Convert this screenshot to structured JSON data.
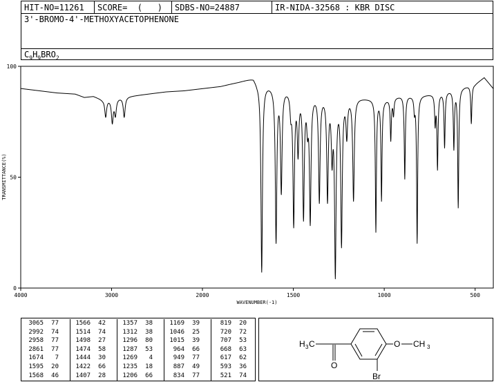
{
  "header": {
    "hit_no": "HIT-NO=11261",
    "score": "SCORE=  (   )",
    "sdbs_no": "SDBS-NO=24887",
    "method": "IR-NIDA-32568 : KBR DISC"
  },
  "compound": {
    "name": "3'-BROMO-4'-METHOXYACETOPHENONE",
    "formula_parts": [
      {
        "t": "C",
        "sub": false
      },
      {
        "t": "9",
        "sub": true
      },
      {
        "t": "H",
        "sub": false
      },
      {
        "t": "9",
        "sub": true
      },
      {
        "t": "BRO",
        "sub": false
      },
      {
        "t": "2",
        "sub": true
      }
    ]
  },
  "structure_labels": {
    "h3c_h": "H",
    "h3c_3": "3",
    "h3c_c": "C",
    "o_carbonyl": "O",
    "o_ether": "O",
    "ch3": "CH",
    "ch3_sub": "3",
    "br": "Br"
  },
  "chart_data": {
    "type": "line",
    "xlabel": "WAVENUMBER(-1)",
    "ylabel": "TRANSMITTANCE(%)",
    "xlim": [
      4000,
      400
    ],
    "ylim": [
      0,
      100
    ],
    "xticks": [
      4000,
      3000,
      2000,
      1500,
      1000,
      500
    ],
    "yticks": [
      0,
      50,
      100
    ],
    "x_scale": "two-segment linear (4000-2000 compressed, 2000-400 expanded)",
    "baseline": [
      [
        4000,
        90
      ],
      [
        3800,
        89
      ],
      [
        3600,
        88
      ],
      [
        3400,
        87.5
      ],
      [
        3300,
        86
      ],
      [
        3200,
        86.5
      ],
      [
        3100,
        85
      ],
      [
        2700,
        87
      ],
      [
        2400,
        88.5
      ],
      [
        2200,
        89
      ],
      [
        2000,
        90
      ],
      [
        1900,
        91
      ],
      [
        1800,
        93
      ],
      [
        1720,
        95
      ],
      [
        1700,
        93
      ],
      [
        1420,
        88
      ],
      [
        1000,
        85
      ],
      [
        900,
        87
      ],
      [
        800,
        87
      ],
      [
        700,
        88
      ],
      [
        600,
        90
      ],
      [
        500,
        92
      ],
      [
        450,
        95
      ],
      [
        400,
        90
      ]
    ],
    "peaks": [
      [
        3065,
        77
      ],
      [
        2992,
        74
      ],
      [
        2958,
        77
      ],
      [
        2861,
        77
      ],
      [
        1674,
        7
      ],
      [
        1595,
        20
      ],
      [
        1568,
        46
      ],
      [
        1566,
        42
      ],
      [
        1514,
        74
      ],
      [
        1498,
        27
      ],
      [
        1474,
        58
      ],
      [
        1444,
        30
      ],
      [
        1422,
        66
      ],
      [
        1407,
        28
      ],
      [
        1357,
        38
      ],
      [
        1312,
        38
      ],
      [
        1296,
        80
      ],
      [
        1287,
        53
      ],
      [
        1269,
        4
      ],
      [
        1235,
        18
      ],
      [
        1206,
        66
      ],
      [
        1169,
        39
      ],
      [
        1046,
        25
      ],
      [
        1015,
        39
      ],
      [
        964,
        66
      ],
      [
        949,
        77
      ],
      [
        887,
        49
      ],
      [
        834,
        77
      ],
      [
        819,
        20
      ],
      [
        720,
        72
      ],
      [
        707,
        53
      ],
      [
        668,
        63
      ],
      [
        617,
        62
      ],
      [
        593,
        36
      ],
      [
        521,
        74
      ]
    ]
  },
  "peak_table": [
    [
      "3065",
      "77"
    ],
    [
      "2992",
      "74"
    ],
    [
      "2958",
      "77"
    ],
    [
      "2861",
      "77"
    ],
    [
      "1674",
      "7"
    ],
    [
      "1595",
      "20"
    ],
    [
      "1568",
      "46"
    ],
    [
      "1566",
      "42"
    ],
    [
      "1514",
      "74"
    ],
    [
      "1498",
      "27"
    ],
    [
      "1474",
      "58"
    ],
    [
      "1444",
      "30"
    ],
    [
      "1422",
      "66"
    ],
    [
      "1407",
      "28"
    ],
    [
      "1357",
      "38"
    ],
    [
      "1312",
      "38"
    ],
    [
      "1296",
      "80"
    ],
    [
      "1287",
      "53"
    ],
    [
      "1269",
      "4"
    ],
    [
      "1235",
      "18"
    ],
    [
      "1206",
      "66"
    ],
    [
      "1169",
      "39"
    ],
    [
      "1046",
      "25"
    ],
    [
      "1015",
      "39"
    ],
    [
      "964",
      "66"
    ],
    [
      "949",
      "77"
    ],
    [
      "887",
      "49"
    ],
    [
      "834",
      "77"
    ],
    [
      "819",
      "20"
    ],
    [
      "720",
      "72"
    ],
    [
      "707",
      "53"
    ],
    [
      "668",
      "63"
    ],
    [
      "617",
      "62"
    ],
    [
      "593",
      "36"
    ],
    [
      "521",
      "74"
    ]
  ]
}
